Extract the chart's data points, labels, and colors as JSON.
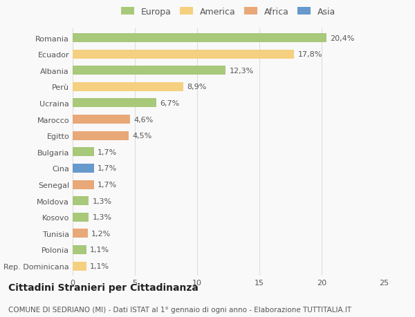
{
  "countries": [
    "Romania",
    "Ecuador",
    "Albania",
    "Perù",
    "Ucraina",
    "Marocco",
    "Egitto",
    "Bulgaria",
    "Cina",
    "Senegal",
    "Moldova",
    "Kosovo",
    "Tunisia",
    "Polonia",
    "Rep. Dominicana"
  ],
  "values": [
    20.4,
    17.8,
    12.3,
    8.9,
    6.7,
    4.6,
    4.5,
    1.7,
    1.7,
    1.7,
    1.3,
    1.3,
    1.2,
    1.1,
    1.1
  ],
  "labels": [
    "20,4%",
    "17,8%",
    "12,3%",
    "8,9%",
    "6,7%",
    "4,6%",
    "4,5%",
    "1,7%",
    "1,7%",
    "1,7%",
    "1,3%",
    "1,3%",
    "1,2%",
    "1,1%",
    "1,1%"
  ],
  "continents": [
    "Europa",
    "America",
    "Europa",
    "America",
    "Europa",
    "Africa",
    "Africa",
    "Europa",
    "Asia",
    "Africa",
    "Europa",
    "Europa",
    "Africa",
    "Europa",
    "America"
  ],
  "colors": {
    "Europa": "#a8c87a",
    "America": "#f5d080",
    "Africa": "#e8a878",
    "Asia": "#6699cc"
  },
  "xlim": [
    0,
    25
  ],
  "xticks": [
    0,
    5,
    10,
    15,
    20,
    25
  ],
  "title": "Cittadini Stranieri per Cittadinanza",
  "subtitle": "COMUNE DI SEDRIANO (MI) - Dati ISTAT al 1° gennaio di ogni anno - Elaborazione TUTTITALIA.IT",
  "background_color": "#f9f9f9",
  "bar_height": 0.55,
  "grid_color": "#dddddd",
  "text_color": "#555555",
  "title_fontsize": 10,
  "subtitle_fontsize": 7.5,
  "label_fontsize": 8,
  "tick_fontsize": 8,
  "legend_fontsize": 9
}
